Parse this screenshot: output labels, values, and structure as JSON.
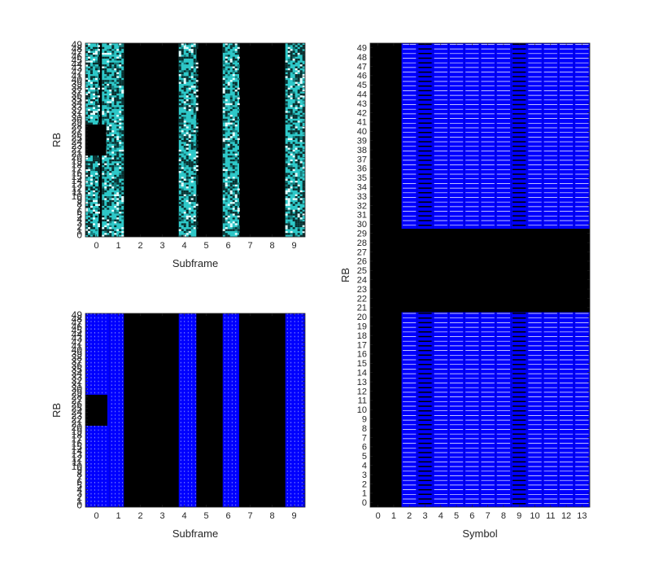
{
  "chart_data": [
    {
      "id": "tl",
      "type": "heatmap",
      "xlabel": "Subframe",
      "ylabel": "RB",
      "x_ticks": [
        "0",
        "1",
        "2",
        "3",
        "4",
        "5",
        "6",
        "7",
        "8",
        "9"
      ],
      "y_ticks": [
        "0",
        "1",
        "2",
        "3",
        "4",
        "5",
        "6",
        "7",
        "8",
        "9",
        "10",
        "11",
        "12",
        "13",
        "14",
        "15",
        "16",
        "17",
        "18",
        "19",
        "20",
        "21",
        "22",
        "23",
        "24",
        "25",
        "26",
        "27",
        "28",
        "29",
        "30",
        "31",
        "32",
        "33",
        "34",
        "35",
        "36",
        "37",
        "38",
        "39",
        "40",
        "41",
        "42",
        "43",
        "44",
        "45",
        "46",
        "47",
        "48",
        "49"
      ],
      "xlim": [
        -0.5,
        9.5
      ],
      "ylim": [
        -0.5,
        49.5
      ],
      "background_color": "#000000",
      "fill_color": "#2ec8c8",
      "pattern": "noise",
      "occupied_regions": [
        {
          "x": [
            -0.5,
            0.1
          ],
          "y": [
            -0.5,
            49.5
          ]
        },
        {
          "x": [
            0.25,
            1.25
          ],
          "y": [
            -0.5,
            49.5
          ]
        },
        {
          "x": [
            3.75,
            4.55
          ],
          "y": [
            -0.5,
            49.5
          ]
        },
        {
          "x": [
            5.75,
            6.5
          ],
          "y": [
            -0.5,
            49.5
          ]
        },
        {
          "x": [
            8.6,
            9.5
          ],
          "y": [
            -0.5,
            49.5
          ]
        }
      ],
      "empty_regions": [
        {
          "x": [
            -0.5,
            0.45
          ],
          "y": [
            20.5,
            28.5
          ]
        }
      ]
    },
    {
      "id": "bl",
      "type": "heatmap",
      "xlabel": "Subframe",
      "ylabel": "RB",
      "x_ticks": [
        "0",
        "1",
        "2",
        "3",
        "4",
        "5",
        "6",
        "7",
        "8",
        "9"
      ],
      "y_ticks": [
        "0",
        "1",
        "2",
        "3",
        "4",
        "5",
        "6",
        "7",
        "8",
        "9",
        "10",
        "11",
        "12",
        "13",
        "14",
        "15",
        "16",
        "17",
        "18",
        "19",
        "20",
        "21",
        "22",
        "23",
        "24",
        "25",
        "26",
        "27",
        "28",
        "29",
        "30",
        "31",
        "32",
        "33",
        "34",
        "35",
        "36",
        "37",
        "38",
        "39",
        "40",
        "41",
        "42",
        "43",
        "44",
        "45",
        "46",
        "47",
        "48",
        "49"
      ],
      "xlim": [
        -0.5,
        9.5
      ],
      "ylim": [
        -0.5,
        49.5
      ],
      "background_color": "#000000",
      "fill_color": "#0000ff",
      "pattern": "stripes",
      "occupied_regions": [
        {
          "x": [
            -0.5,
            0.6
          ],
          "y": [
            -0.5,
            49.5
          ]
        },
        {
          "x": [
            0.6,
            1.25
          ],
          "y": [
            -0.5,
            49.5
          ]
        },
        {
          "x": [
            3.75,
            4.55
          ],
          "y": [
            -0.5,
            49.5
          ]
        },
        {
          "x": [
            5.75,
            6.5
          ],
          "y": [
            -0.5,
            49.5
          ]
        },
        {
          "x": [
            8.6,
            9.5
          ],
          "y": [
            -0.5,
            49.5
          ]
        }
      ],
      "empty_regions": [
        {
          "x": [
            -0.5,
            0.5
          ],
          "y": [
            20.5,
            28.5
          ]
        }
      ]
    },
    {
      "id": "right",
      "type": "heatmap",
      "xlabel": "Symbol",
      "ylabel": "RB",
      "x_ticks": [
        "0",
        "1",
        "2",
        "3",
        "4",
        "5",
        "6",
        "7",
        "8",
        "9",
        "10",
        "11",
        "12",
        "13"
      ],
      "y_ticks": [
        "0",
        "1",
        "2",
        "3",
        "4",
        "5",
        "6",
        "7",
        "8",
        "9",
        "10",
        "11",
        "12",
        "13",
        "14",
        "15",
        "16",
        "17",
        "18",
        "19",
        "20",
        "21",
        "22",
        "23",
        "24",
        "25",
        "26",
        "27",
        "28",
        "29",
        "30",
        "31",
        "32",
        "33",
        "34",
        "35",
        "36",
        "37",
        "38",
        "39",
        "40",
        "41",
        "42",
        "43",
        "44",
        "45",
        "46",
        "47",
        "48",
        "49"
      ],
      "xlim": [
        -0.5,
        13.5
      ],
      "ylim": [
        -0.5,
        49.5
      ],
      "background_color": "#000000",
      "fill_color": "#0000ff",
      "pattern": "symbol",
      "dmrs_symbols": [
        3,
        9
      ],
      "occupied_regions": [
        {
          "x": [
            1.5,
            13.5
          ],
          "y": [
            -0.5,
            20.5
          ]
        },
        {
          "x": [
            1.5,
            13.5
          ],
          "y": [
            29.5,
            49.5
          ]
        }
      ],
      "empty_regions": []
    }
  ]
}
